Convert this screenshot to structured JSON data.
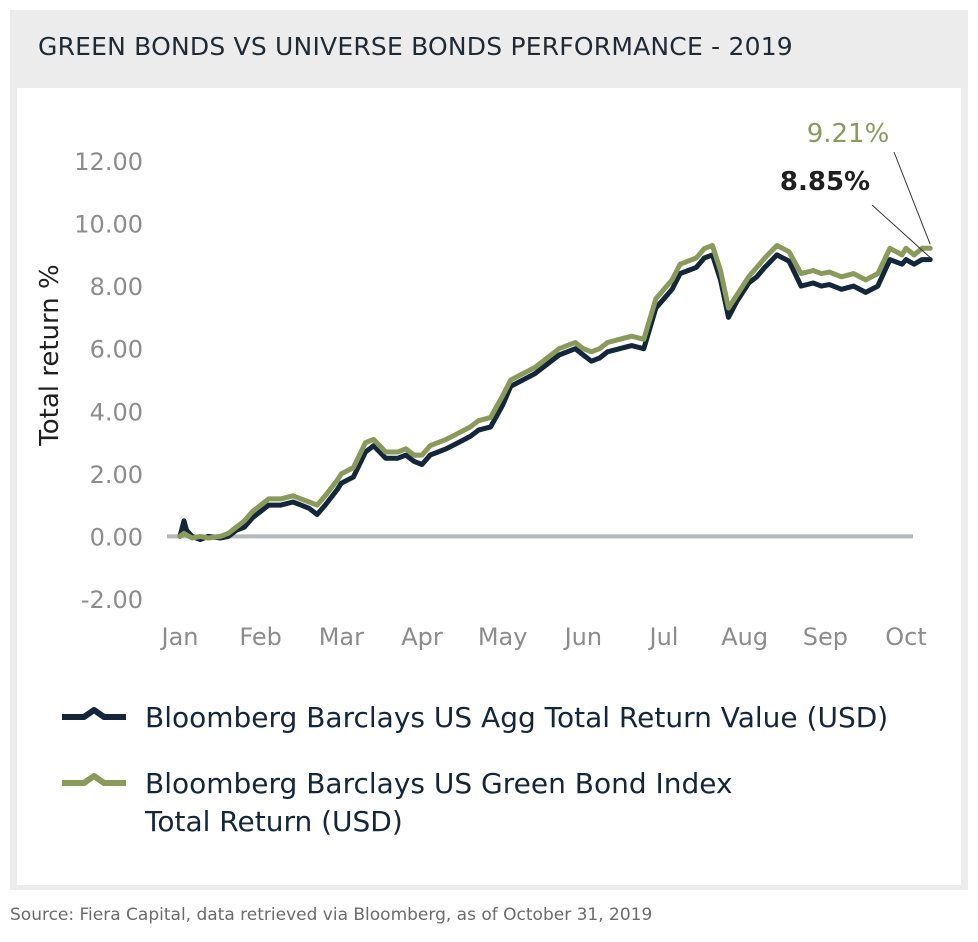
{
  "title": "GREEN BONDS VS UNIVERSE BONDS PERFORMANCE - 2019",
  "source": "Source: Fiera Capital, data retrieved via Bloomberg, as of October 31, 2019",
  "colors": {
    "agg": "#14263a",
    "green": "#8a9a5b",
    "zero_line": "#b4b8bb",
    "tick_text": "#8c8c8c",
    "frame": "#ececec"
  },
  "chart_data": {
    "type": "line",
    "title": "",
    "ylabel": "Total return %",
    "xlabel": "",
    "ylim": [
      -2,
      12
    ],
    "yticks": [
      "12.00",
      "10.00",
      "8.00",
      "6.00",
      "4.00",
      "2.00",
      "0.00",
      "-2.00"
    ],
    "ytick_values": [
      12,
      10,
      8,
      6,
      4,
      2,
      0,
      -2
    ],
    "categories": [
      "Jan",
      "Feb",
      "Mar",
      "Apr",
      "May",
      "Jun",
      "Jul",
      "Aug",
      "Sep",
      "Oct"
    ],
    "x": [
      0,
      0.05,
      0.08,
      0.15,
      0.25,
      0.35,
      0.5,
      0.6,
      0.7,
      0.8,
      0.9,
      1.0,
      1.1,
      1.25,
      1.4,
      1.5,
      1.6,
      1.7,
      1.8,
      1.95,
      2.0,
      2.15,
      2.3,
      2.4,
      2.55,
      2.7,
      2.8,
      2.9,
      3.0,
      3.1,
      3.2,
      3.3,
      3.45,
      3.6,
      3.7,
      3.85,
      4.0,
      4.1,
      4.25,
      4.4,
      4.55,
      4.7,
      4.8,
      4.9,
      5.0,
      5.1,
      5.2,
      5.3,
      5.45,
      5.6,
      5.75,
      5.9,
      6.0,
      6.1,
      6.2,
      6.3,
      6.4,
      6.5,
      6.6,
      6.7,
      6.8,
      6.9,
      7.0,
      7.05,
      7.15,
      7.25,
      7.4,
      7.55,
      7.7,
      7.85,
      7.95,
      8.05,
      8.2,
      8.35,
      8.5,
      8.65,
      8.8,
      8.95,
      9.0,
      9.1,
      9.2,
      9.3
    ],
    "series": [
      {
        "name": "Bloomberg Barclays US Agg Total Return Value (USD)",
        "values": [
          0,
          0.5,
          0.2,
          0.0,
          -0.1,
          0.0,
          -0.05,
          0.0,
          0.2,
          0.3,
          0.6,
          0.8,
          1.0,
          1.0,
          1.1,
          1.0,
          0.9,
          0.7,
          1.0,
          1.5,
          1.7,
          1.9,
          2.7,
          2.9,
          2.5,
          2.5,
          2.6,
          2.4,
          2.3,
          2.6,
          2.7,
          2.8,
          3.0,
          3.2,
          3.4,
          3.5,
          4.2,
          4.8,
          5.0,
          5.2,
          5.5,
          5.8,
          5.9,
          6.0,
          5.8,
          5.6,
          5.7,
          5.9,
          6.0,
          6.1,
          6.0,
          7.3,
          7.6,
          7.9,
          8.4,
          8.5,
          8.6,
          8.9,
          9.0,
          8.2,
          7.0,
          7.5,
          7.9,
          8.1,
          8.3,
          8.6,
          9.0,
          8.8,
          8.0,
          8.1,
          8.0,
          8.05,
          7.9,
          8.0,
          7.8,
          8.0,
          8.85,
          8.7,
          8.85,
          8.7,
          8.85,
          8.85
        ]
      },
      {
        "name": "Bloomberg Barclays US Green Bond Index Total Return (USD)",
        "values": [
          0,
          0.1,
          0.05,
          -0.05,
          0.0,
          -0.05,
          0.0,
          0.1,
          0.3,
          0.5,
          0.8,
          1.0,
          1.2,
          1.2,
          1.3,
          1.2,
          1.1,
          1.0,
          1.3,
          1.8,
          2.0,
          2.2,
          3.0,
          3.1,
          2.7,
          2.7,
          2.8,
          2.6,
          2.6,
          2.9,
          3.0,
          3.1,
          3.3,
          3.5,
          3.7,
          3.8,
          4.5,
          5.0,
          5.2,
          5.4,
          5.7,
          6.0,
          6.1,
          6.2,
          6.0,
          5.9,
          6.0,
          6.2,
          6.3,
          6.4,
          6.3,
          7.6,
          7.9,
          8.2,
          8.7,
          8.8,
          8.9,
          9.2,
          9.3,
          8.5,
          7.3,
          7.7,
          8.1,
          8.3,
          8.6,
          8.9,
          9.3,
          9.1,
          8.4,
          8.5,
          8.4,
          8.45,
          8.3,
          8.4,
          8.2,
          8.4,
          9.21,
          9.0,
          9.21,
          9.0,
          9.21,
          9.21
        ]
      }
    ],
    "annotations": [
      {
        "text": "9.21%",
        "series": 1
      },
      {
        "text": "8.85%",
        "series": 0
      }
    ],
    "legend": {
      "placement": "bottom",
      "entries": [
        {
          "lines": [
            "Bloomberg Barclays US Agg Total Return Value (USD)"
          ]
        },
        {
          "lines": [
            "Bloomberg Barclays US Green Bond Index",
            "Total Return (USD)"
          ]
        }
      ]
    }
  }
}
